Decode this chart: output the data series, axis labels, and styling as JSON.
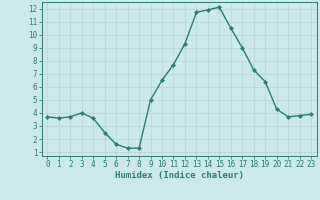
{
  "x": [
    0,
    1,
    2,
    3,
    4,
    5,
    6,
    7,
    8,
    9,
    10,
    11,
    12,
    13,
    14,
    15,
    16,
    17,
    18,
    19,
    20,
    21,
    22,
    23
  ],
  "y": [
    3.7,
    3.6,
    3.7,
    4.0,
    3.6,
    2.5,
    1.6,
    1.3,
    1.3,
    5.0,
    6.5,
    7.7,
    9.3,
    11.7,
    11.9,
    12.1,
    10.5,
    9.0,
    7.3,
    6.4,
    4.3,
    3.7,
    3.8,
    3.9
  ],
  "line_color": "#2e7d6e",
  "marker": "D",
  "marker_size": 2.0,
  "bg_color": "#cce8e8",
  "grid_color": "#b8d4d4",
  "xlabel": "Humidex (Indice chaleur)",
  "xlim": [
    -0.5,
    23.5
  ],
  "ylim": [
    0.7,
    12.5
  ],
  "yticks": [
    1,
    2,
    3,
    4,
    5,
    6,
    7,
    8,
    9,
    10,
    11,
    12
  ],
  "xticks": [
    0,
    1,
    2,
    3,
    4,
    5,
    6,
    7,
    8,
    9,
    10,
    11,
    12,
    13,
    14,
    15,
    16,
    17,
    18,
    19,
    20,
    21,
    22,
    23
  ],
  "axis_color": "#2e7d6e",
  "tick_color": "#2e7d6e",
  "label_fontsize": 6.5,
  "tick_fontsize": 5.5,
  "linewidth": 1.0
}
